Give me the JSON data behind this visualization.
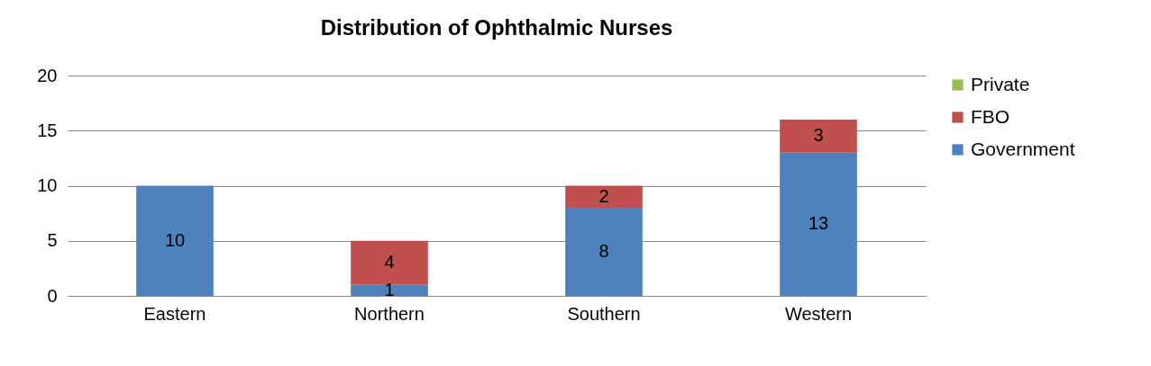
{
  "chart_data": {
    "type": "bar",
    "title": "Distribution of Ophthalmic Nurses",
    "categories": [
      "Eastern",
      "Northern",
      "Southern",
      "Western"
    ],
    "stacked": true,
    "series": [
      {
        "name": "Government",
        "color": "#4f81bd",
        "values": [
          10,
          1,
          8,
          13
        ],
        "value_labels": [
          "10",
          "1",
          "8",
          "13"
        ]
      },
      {
        "name": "FBO",
        "color": "#c0504d",
        "values": [
          0,
          4,
          2,
          3
        ],
        "value_labels": [
          null,
          "4",
          "2",
          "3"
        ]
      },
      {
        "name": "Private",
        "color": "#9bbb59",
        "values": [
          0,
          0,
          0,
          0
        ],
        "value_labels": [
          null,
          null,
          null,
          null
        ]
      }
    ],
    "ylim": [
      0,
      20
    ],
    "yticks": [
      0,
      5,
      10,
      15,
      20
    ],
    "grid": "y",
    "legend": "right"
  }
}
